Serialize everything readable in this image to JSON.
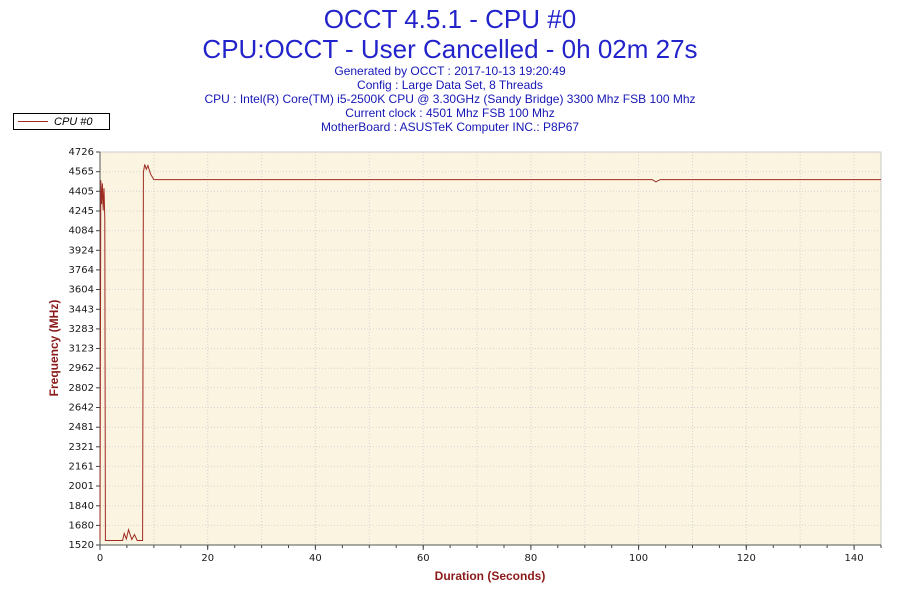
{
  "header": {
    "title": "OCCT 4.5.1 - CPU #0",
    "subtitle": "CPU:OCCT - User Cancelled - 0h 02m 27s",
    "info_lines": [
      "Generated by OCCT : 2017-10-13 19:20:49",
      "Config : Large Data Set, 8 Threads",
      "CPU : Intel(R) Core(TM) i5-2500K CPU @ 3.30GHz (Sandy Bridge) 3300 Mhz FSB 100 Mhz",
      "Current clock : 4501 Mhz FSB 100 Mhz",
      "MotherBoard : ASUSTeK Computer INC.: P8P67"
    ]
  },
  "legend": {
    "label": "CPU #0"
  },
  "colors": {
    "title_blue": "#2323cb",
    "info_blue": "#1616b5",
    "axis_label_red": "#8b1a1a",
    "series_red": "#9e2a20",
    "plot_background": "#fbf4e0",
    "grid_gray": "#d4d4d4"
  },
  "chart_data": {
    "type": "line",
    "title": "OCCT 4.5.1 - CPU #0",
    "xlabel": "Duration (Seconds)",
    "ylabel": "Frequency (MHz)",
    "xlim": [
      0,
      145
    ],
    "ylim": [
      1520,
      4726
    ],
    "x_ticks": [
      0,
      20,
      40,
      60,
      80,
      100,
      120,
      140
    ],
    "y_ticks": [
      4726,
      4565,
      4405,
      4245,
      4084,
      3924,
      3764,
      3604,
      3443,
      3283,
      3123,
      2962,
      2802,
      2642,
      2481,
      2321,
      2161,
      2001,
      1840,
      1680,
      1520
    ],
    "grid": true,
    "grid_x_step": 10,
    "minor_x_step": 5,
    "grid_color": "#d4d4d4",
    "plot_bg": "#fbf4e0",
    "legend_position": "top-left",
    "series": [
      {
        "name": "CPU #0",
        "color": "#9e2a20",
        "points": [
          [
            0,
            1557
          ],
          [
            0.15,
            4495
          ],
          [
            0.3,
            4300
          ],
          [
            0.45,
            4470
          ],
          [
            0.6,
            4250
          ],
          [
            0.75,
            4430
          ],
          [
            0.9,
            4180
          ],
          [
            1.0,
            1557
          ],
          [
            4.2,
            1557
          ],
          [
            4.5,
            1615
          ],
          [
            4.9,
            1570
          ],
          [
            5.3,
            1645
          ],
          [
            5.9,
            1565
          ],
          [
            6.4,
            1605
          ],
          [
            6.9,
            1557
          ],
          [
            7.9,
            1557
          ],
          [
            8.05,
            4560
          ],
          [
            8.3,
            4625
          ],
          [
            8.6,
            4585
          ],
          [
            8.9,
            4615
          ],
          [
            9.4,
            4545
          ],
          [
            10,
            4501
          ],
          [
            100,
            4501
          ],
          [
            102.5,
            4501
          ],
          [
            103.2,
            4483
          ],
          [
            104,
            4501
          ],
          [
            145,
            4501
          ]
        ]
      }
    ]
  }
}
